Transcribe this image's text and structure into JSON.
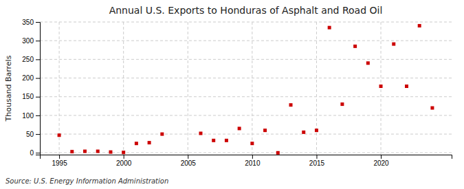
{
  "chart_data": {
    "type": "scatter",
    "title": "Annual U.S. Exports to Honduras of Asphalt and Road Oil",
    "ylabel": "Thousand Barrels",
    "source": "Source: U.S. Energy Information Administration",
    "x": [
      1995,
      1996,
      1997,
      1998,
      1999,
      2000,
      2001,
      2002,
      2003,
      2006,
      2007,
      2008,
      2009,
      2010,
      2011,
      2012,
      2013,
      2014,
      2015,
      2016,
      2017,
      2018,
      2019,
      2020,
      2021,
      2022,
      2023,
      2024
    ],
    "values": [
      47,
      3,
      4,
      4,
      2,
      1,
      25,
      27,
      50,
      52,
      33,
      33,
      65,
      25,
      60,
      0,
      128,
      55,
      60,
      335,
      130,
      285,
      240,
      178,
      291,
      178,
      340,
      120
    ],
    "color": "#cc0000",
    "marker": "square",
    "xlim": [
      1993.5,
      2025.5
    ],
    "ylim": [
      -5,
      350
    ],
    "xticks": [
      1995,
      2000,
      2005,
      2010,
      2015,
      2020
    ],
    "yticks": [
      0,
      50,
      100,
      150,
      200,
      250,
      300,
      350
    ],
    "grid": true
  }
}
